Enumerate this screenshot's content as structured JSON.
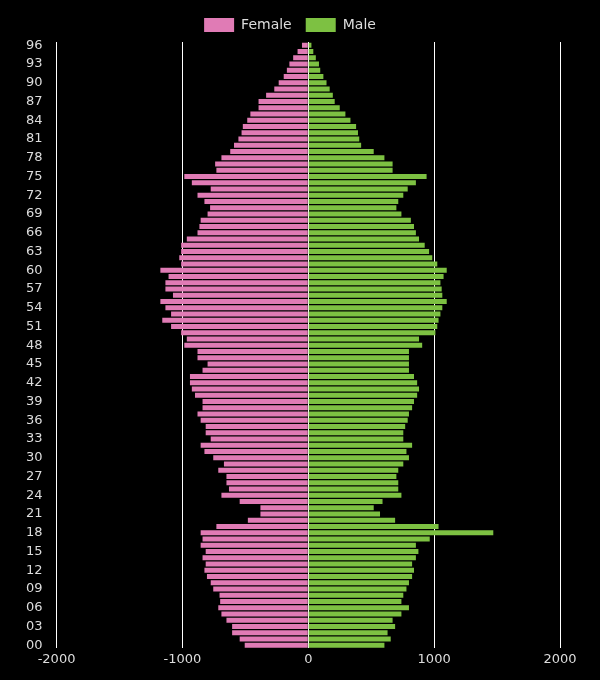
{
  "chart_data": {
    "type": "bar",
    "orientation": "horizontal",
    "stacked": true,
    "grid": true,
    "legend": "top",
    "categories": [
      "00",
      null,
      null,
      "03",
      null,
      null,
      "06",
      null,
      null,
      "09",
      null,
      null,
      "12",
      null,
      null,
      "15",
      null,
      null,
      "18",
      null,
      null,
      "21",
      null,
      null,
      "24",
      null,
      null,
      "27",
      null,
      null,
      "30",
      null,
      null,
      "33",
      null,
      null,
      "36",
      null,
      null,
      "39",
      null,
      null,
      "42",
      null,
      null,
      "45",
      null,
      null,
      "48",
      null,
      null,
      "51",
      null,
      null,
      "54",
      null,
      null,
      "57",
      null,
      null,
      "60",
      null,
      null,
      "63",
      null,
      null,
      "66",
      null,
      null,
      "69",
      null,
      null,
      "72",
      null,
      null,
      "75",
      null,
      null,
      "78",
      null,
      null,
      "81",
      null,
      null,
      "84",
      null,
      null,
      "87",
      null,
      null,
      "90",
      null,
      null,
      "93",
      null,
      null,
      "96"
    ],
    "series": [
      {
        "name": "Female",
        "color": "#e07bb5",
        "values": [
          -505,
          -545,
          -605,
          -605,
          -650,
          -690,
          -715,
          -700,
          -705,
          -755,
          -775,
          -805,
          -825,
          -815,
          -840,
          -815,
          -855,
          -840,
          -855,
          -730,
          -480,
          -380,
          -380,
          -545,
          -690,
          -630,
          -650,
          -650,
          -715,
          -670,
          -755,
          -825,
          -855,
          -775,
          -815,
          -815,
          -855,
          -880,
          -840,
          -840,
          -900,
          -925,
          -940,
          -940,
          -840,
          -800,
          -880,
          -880,
          -985,
          -965,
          -1010,
          -1090,
          -1160,
          -1090,
          -1135,
          -1175,
          -1075,
          -1135,
          -1135,
          -1110,
          -1175,
          -1010,
          -1025,
          -1010,
          -1010,
          -965,
          -880,
          -865,
          -855,
          -800,
          -780,
          -825,
          -880,
          -775,
          -925,
          -985,
          -730,
          -740,
          -690,
          -620,
          -590,
          -555,
          -530,
          -520,
          -485,
          -460,
          -395,
          -395,
          -335,
          -270,
          -235,
          -195,
          -170,
          -150,
          -120,
          -85,
          -50
        ]
      },
      {
        "name": "Male",
        "color": "#7dc142",
        "values": [
          605,
          655,
          630,
          690,
          670,
          740,
          800,
          740,
          755,
          780,
          800,
          825,
          840,
          825,
          855,
          875,
          855,
          965,
          1470,
          1035,
          690,
          570,
          520,
          590,
          740,
          715,
          715,
          700,
          715,
          755,
          800,
          780,
          825,
          755,
          755,
          770,
          790,
          800,
          825,
          840,
          865,
          880,
          865,
          840,
          800,
          800,
          800,
          800,
          905,
          880,
          1010,
          1025,
          1035,
          1050,
          1065,
          1100,
          1065,
          1060,
          1050,
          1075,
          1100,
          1025,
          985,
          960,
          925,
          880,
          855,
          840,
          815,
          740,
          700,
          715,
          755,
          790,
          855,
          940,
          670,
          670,
          605,
          520,
          420,
          405,
          395,
          380,
          335,
          295,
          250,
          210,
          195,
          170,
          145,
          120,
          95,
          85,
          60,
          40,
          25
        ]
      }
    ],
    "xlim": [
      -2000,
      2000
    ],
    "xticks": [
      -2000,
      -1000,
      0,
      1000,
      2000
    ]
  }
}
